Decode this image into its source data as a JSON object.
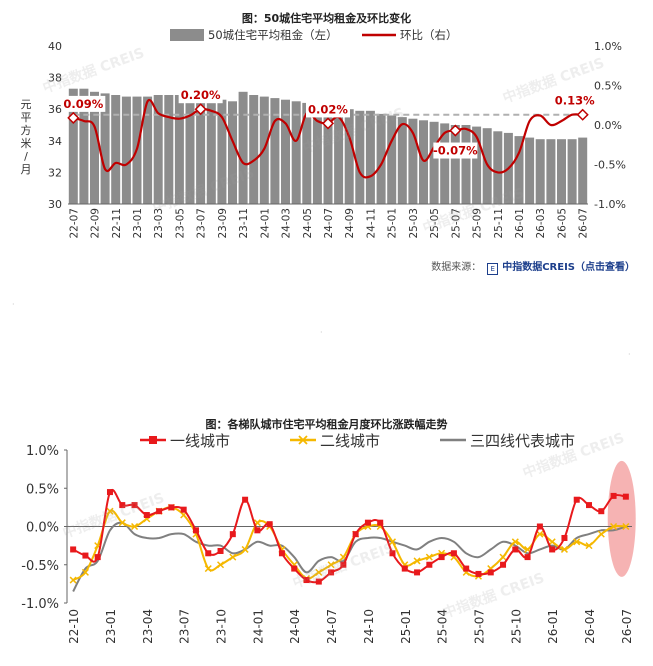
{
  "charts": [
    {
      "title": "图：50城住宅平均租金及环比变化",
      "ylabel_chars": [
        "元",
        "平",
        "方",
        "米",
        "/",
        "月"
      ],
      "chart_data": {
        "type": "bar+line",
        "title": "图：50城住宅平均租金及环比变化",
        "xlabel": "",
        "ylabel": "元/平方米/月",
        "ylim": [
          30,
          40
        ],
        "y2lim": [
          -1.0,
          1.0
        ],
        "y_ticks": [
          "30",
          "32",
          "34",
          "36",
          "38",
          "40"
        ],
        "y2_ticks": [
          "-1.0%",
          "-0.5%",
          "0.0%",
          "0.5%",
          "1.0%"
        ],
        "tick_labels": [
          "22-07",
          "22-09",
          "22-11",
          "23-01",
          "23-03",
          "23-05",
          "23-07",
          "23-09",
          "23-11",
          "24-01",
          "24-03",
          "24-05",
          "24-07",
          "24-09",
          "24-11",
          "25-01",
          "25-03",
          "25-05",
          "25-07",
          "25-09",
          "25-11",
          "26-01",
          "26-03",
          "26-05",
          "26-07"
        ],
        "categories": [
          "22-07",
          "22-08",
          "22-09",
          "22-10",
          "22-11",
          "22-12",
          "23-01",
          "23-02",
          "23-03",
          "23-04",
          "23-05",
          "23-06",
          "23-07",
          "23-08",
          "23-09",
          "23-10",
          "23-11",
          "23-12",
          "24-01",
          "24-02",
          "24-03",
          "24-04",
          "24-05",
          "24-06",
          "24-07",
          "24-08",
          "24-09",
          "24-10",
          "24-11",
          "24-12",
          "25-01",
          "25-02",
          "25-03",
          "25-04",
          "25-05",
          "25-06",
          "25-07",
          "25-08",
          "25-09",
          "25-10",
          "25-11",
          "25-12",
          "26-01",
          "26-02",
          "26-03",
          "26-04",
          "26-05",
          "26-06",
          "26-07"
        ],
        "series": [
          {
            "name": "50城住宅平均租金（左）",
            "axis": "left",
            "kind": "bar",
            "color": "#8c8c8c",
            "values": [
              37.3,
              37.3,
              37.1,
              37.0,
              36.9,
              36.8,
              36.8,
              36.8,
              36.9,
              36.9,
              36.9,
              36.8,
              36.8,
              36.7,
              36.6,
              36.5,
              37.1,
              36.9,
              36.8,
              36.7,
              36.6,
              36.5,
              36.4,
              36.3,
              36.2,
              36.1,
              36.0,
              35.9,
              35.9,
              35.7,
              35.6,
              35.5,
              35.4,
              35.3,
              35.2,
              35.1,
              35.0,
              35.0,
              34.9,
              34.8,
              34.6,
              34.5,
              34.3,
              34.2,
              34.1,
              34.1,
              34.1,
              34.1,
              34.2
            ]
          },
          {
            "name": "环比（右）",
            "axis": "right",
            "kind": "line",
            "color": "#c00000",
            "values": [
              0.09,
              0.05,
              -0.02,
              -0.56,
              -0.48,
              -0.5,
              -0.3,
              0.3,
              0.15,
              0.1,
              0.08,
              0.12,
              0.2,
              0.18,
              0.1,
              -0.2,
              -0.48,
              -0.45,
              -0.3,
              0.05,
              0.02,
              -0.2,
              0.15,
              0.05,
              0.02,
              0.1,
              -0.15,
              -0.6,
              -0.65,
              -0.5,
              -0.2,
              0.01,
              -0.1,
              -0.45,
              -0.28,
              -0.1,
              -0.07,
              -0.05,
              -0.15,
              -0.5,
              -0.6,
              -0.55,
              -0.35,
              0.05,
              0.12,
              0.0,
              0.05,
              0.13,
              0.13
            ]
          }
        ],
        "reference_line": {
          "axis": "right",
          "value": 0.13,
          "style": "dashed"
        },
        "annotations": [
          {
            "index": 0,
            "text": "0.09%"
          },
          {
            "index": 12,
            "text": "0.20%"
          },
          {
            "index": 24,
            "text": "0.02%"
          },
          {
            "index": 36,
            "text": "-0.07%"
          },
          {
            "index": 48,
            "text": "0.13%"
          }
        ],
        "legend_position": "top",
        "grid": false
      },
      "source": {
        "label": "数据来源：",
        "brand": "中指数据CREIS（点击查看）"
      }
    },
    {
      "title": "图：各梯队城市住宅平均租金月度环比涨跌幅走势",
      "chart_data": {
        "type": "line",
        "title": "图：各梯队城市住宅平均租金月度环比涨跌幅走势",
        "xlabel": "",
        "ylabel": "",
        "ylim": [
          -1.0,
          1.0
        ],
        "y_ticks": [
          "-1.0%",
          "-0.5%",
          "0.0%",
          "0.5%",
          "1.0%"
        ],
        "tick_labels": [
          "22-10",
          "23-01",
          "23-04",
          "23-07",
          "23-10",
          "24-01",
          "24-04",
          "24-07",
          "24-10",
          "25-01",
          "25-04",
          "25-07",
          "25-10",
          "26-01",
          "26-04",
          "26-07"
        ],
        "categories": [
          "22-10",
          "22-11",
          "22-12",
          "23-01",
          "23-02",
          "23-03",
          "23-04",
          "23-05",
          "23-06",
          "23-07",
          "23-08",
          "23-09",
          "23-10",
          "23-11",
          "23-12",
          "24-01",
          "24-02",
          "24-03",
          "24-04",
          "24-05",
          "24-06",
          "24-07",
          "24-08",
          "24-09",
          "24-10",
          "24-11",
          "24-12",
          "25-01",
          "25-02",
          "25-03",
          "25-04",
          "25-05",
          "25-06",
          "25-07",
          "25-08",
          "25-09",
          "25-10",
          "25-11",
          "25-12",
          "26-01",
          "26-02",
          "26-03",
          "26-04",
          "26-05",
          "26-06",
          "26-07"
        ],
        "series": [
          {
            "name": "一线城市",
            "color": "#e8191c",
            "marker": "square",
            "values": [
              -0.3,
              -0.38,
              -0.4,
              0.45,
              0.28,
              0.28,
              0.15,
              0.2,
              0.25,
              0.22,
              -0.05,
              -0.35,
              -0.32,
              -0.1,
              0.35,
              -0.05,
              0.03,
              -0.35,
              -0.55,
              -0.7,
              -0.72,
              -0.6,
              -0.5,
              -0.1,
              0.05,
              0.05,
              -0.35,
              -0.55,
              -0.6,
              -0.5,
              -0.4,
              -0.35,
              -0.55,
              -0.62,
              -0.6,
              -0.5,
              -0.3,
              -0.4,
              0.0,
              -0.3,
              -0.15,
              0.35,
              0.28,
              0.2,
              0.4,
              0.39
            ]
          },
          {
            "name": "二线城市",
            "color": "#f5b800",
            "marker": "x",
            "values": [
              -0.7,
              -0.6,
              -0.25,
              0.2,
              0.05,
              0.0,
              0.1,
              0.2,
              0.25,
              0.15,
              -0.1,
              -0.55,
              -0.5,
              -0.4,
              -0.3,
              0.05,
              0.0,
              -0.3,
              -0.5,
              -0.68,
              -0.6,
              -0.5,
              -0.4,
              -0.1,
              0.0,
              0.0,
              -0.2,
              -0.5,
              -0.45,
              -0.4,
              -0.35,
              -0.4,
              -0.6,
              -0.65,
              -0.55,
              -0.4,
              -0.2,
              -0.3,
              -0.1,
              -0.2,
              -0.3,
              -0.2,
              -0.25,
              -0.1,
              0.0,
              0.0
            ]
          },
          {
            "name": "三四线代表城市",
            "color": "#808080",
            "marker": "none",
            "values": [
              -0.85,
              -0.55,
              -0.45,
              -0.05,
              0.05,
              -0.1,
              -0.15,
              -0.15,
              -0.1,
              -0.1,
              -0.2,
              -0.25,
              -0.25,
              -0.35,
              -0.3,
              -0.2,
              -0.25,
              -0.25,
              -0.4,
              -0.6,
              -0.45,
              -0.4,
              -0.45,
              -0.2,
              -0.15,
              -0.15,
              -0.2,
              -0.25,
              -0.3,
              -0.2,
              -0.15,
              -0.2,
              -0.35,
              -0.4,
              -0.3,
              -0.2,
              -0.25,
              -0.35,
              -0.3,
              -0.25,
              -0.3,
              -0.15,
              -0.1,
              -0.05,
              -0.05,
              0.0
            ]
          }
        ],
        "highlight": {
          "from_index": 44,
          "to_index": 45,
          "color": "#f08080"
        },
        "legend_position": "top",
        "grid": false
      }
    }
  ],
  "watermark": "中指数据 CREIS"
}
